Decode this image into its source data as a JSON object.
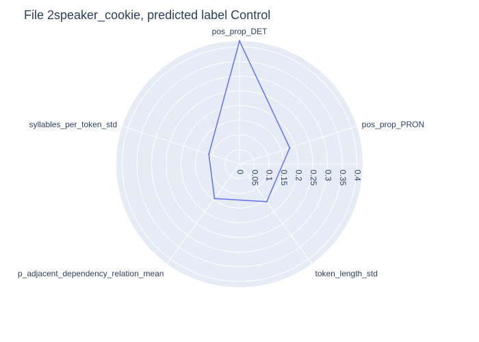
{
  "chart_data": {
    "type": "radar",
    "title": "File 2speaker_cookie, predicted label Control",
    "axes": [
      "pos_prop_DET",
      "pos_prop_PRON",
      "token_length_std",
      "p_adjacent_dependency_relation_mean",
      "syllables_per_token_std"
    ],
    "series": [
      {
        "values": [
          0.42,
          0.18,
          0.158,
          0.145,
          0.11
        ]
      }
    ],
    "radial_ticks": [
      "0",
      "0.05",
      "0.1",
      "0.15",
      "0.2",
      "0.25",
      "0.3",
      "0.35",
      "0.4"
    ],
    "radial_range": [
      0,
      0.42
    ],
    "grid": true,
    "colors": {
      "series": "#636efa",
      "background": "#e5ecf6",
      "grid": "#ffffff",
      "text": "#2a3f5f"
    }
  }
}
